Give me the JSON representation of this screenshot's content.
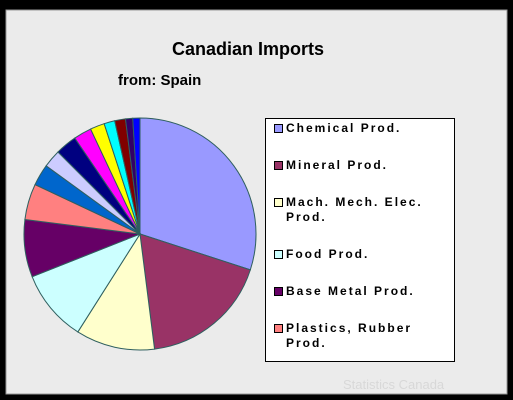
{
  "chart_data": {
    "type": "pie",
    "title": "Canadian Imports",
    "subtitle": "from: Spain",
    "categories": [
      "Chemical Prod.",
      "Mineral Prod.",
      "Mach. Mech. Elec. Prod.",
      "Food Prod.",
      "Base Metal Prod.",
      "Plastics, Rubber Prod.",
      null,
      null,
      null,
      null,
      null,
      null,
      null,
      null,
      null
    ],
    "values": [
      30,
      18,
      11,
      10,
      8,
      5,
      3,
      2.5,
      3,
      2.5,
      2,
      1.5,
      1.5,
      1,
      1
    ],
    "colors": [
      "#9999ff",
      "#993366",
      "#ffffcc",
      "#ccffff",
      "#660066",
      "#ff8080",
      "#0066cc",
      "#ccccff",
      "#000080",
      "#ff00ff",
      "#ffff00",
      "#00ffff",
      "#800000",
      "#330066",
      "#0000ff"
    ],
    "watermark": "Statistics Canada"
  }
}
